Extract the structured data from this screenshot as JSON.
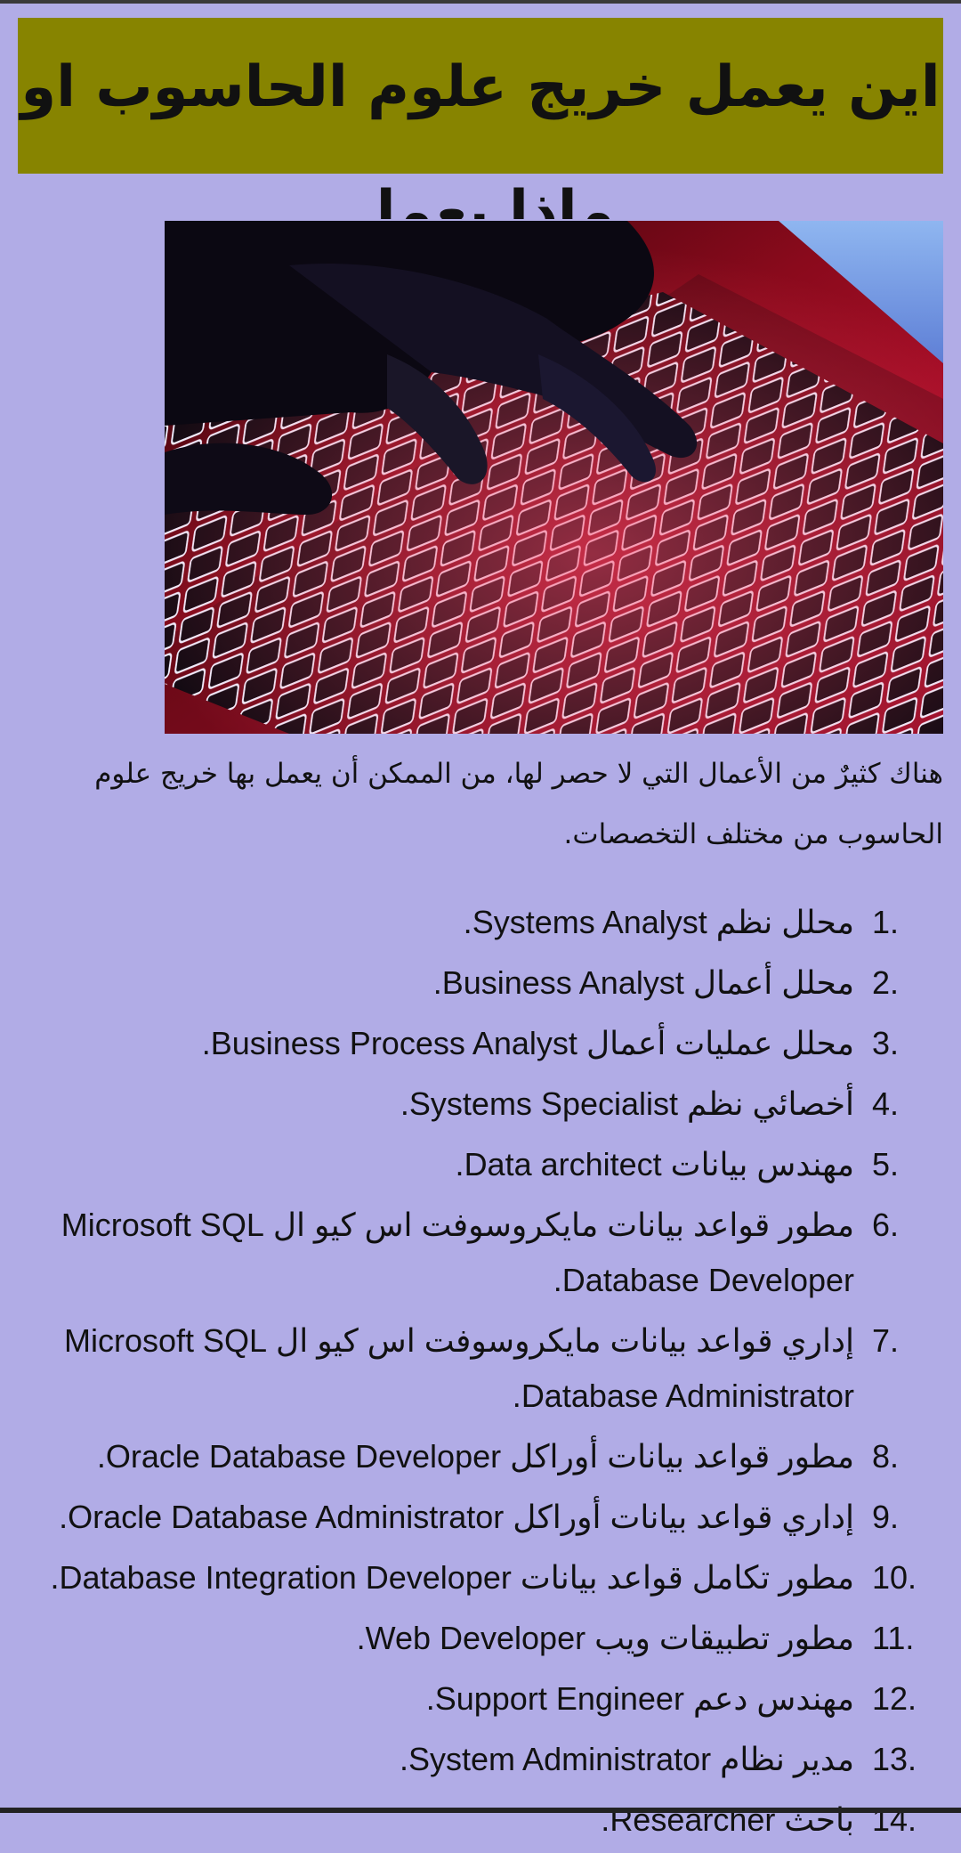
{
  "title": "اين يعمل خريج علوم الحاسوب او ماذا يعمل",
  "hero_image": {
    "alt": "keyboard-photo"
  },
  "intro": "هناك كثيرٌ من الأعمال التي لا حصر لها، من الممكن أن يعمل بها خريج علوم الحاسوب من مختلف التخصصات.",
  "jobs": [
    {
      "num": "1.",
      "text": "محلل نظم Systems Analyst."
    },
    {
      "num": "2.",
      "text": "محلل أعمال Business Analyst."
    },
    {
      "num": "3.",
      "text": "محلل عمليات أعمال Business Process Analyst."
    },
    {
      "num": "4.",
      "text": "أخصائي نظم Systems Specialist."
    },
    {
      "num": "5.",
      "text": "مهندس بيانات Data architect."
    },
    {
      "num": "6.",
      "text": "مطور قواعد بيانات مايكروسوفت اس كيو ال Microsoft SQL Database Developer."
    },
    {
      "num": "7.",
      "text": "إداري قواعد بيانات مايكروسوفت اس كيو ال Microsoft SQL Database Administrator."
    },
    {
      "num": "8.",
      "text": "مطور قواعد بيانات أوراكل Oracle Database Developer."
    },
    {
      "num": "9.",
      "text": "إداري قواعد بيانات أوراكل Oracle Database Administrator."
    },
    {
      "num": "10.",
      "text": "مطور تكامل قواعد بيانات Database Integration Developer."
    },
    {
      "num": "11.",
      "text": "مطور تطبيقات ويب Web Developer."
    },
    {
      "num": "12.",
      "text": "مهندس دعم Support Engineer."
    },
    {
      "num": "13.",
      "text": "مدير نظام System Administrator."
    },
    {
      "num": "14.",
      "text": "باحث Researcher."
    }
  ],
  "colors": {
    "background": "#b1ace6",
    "title_box": "#878400",
    "text": "#111111"
  }
}
